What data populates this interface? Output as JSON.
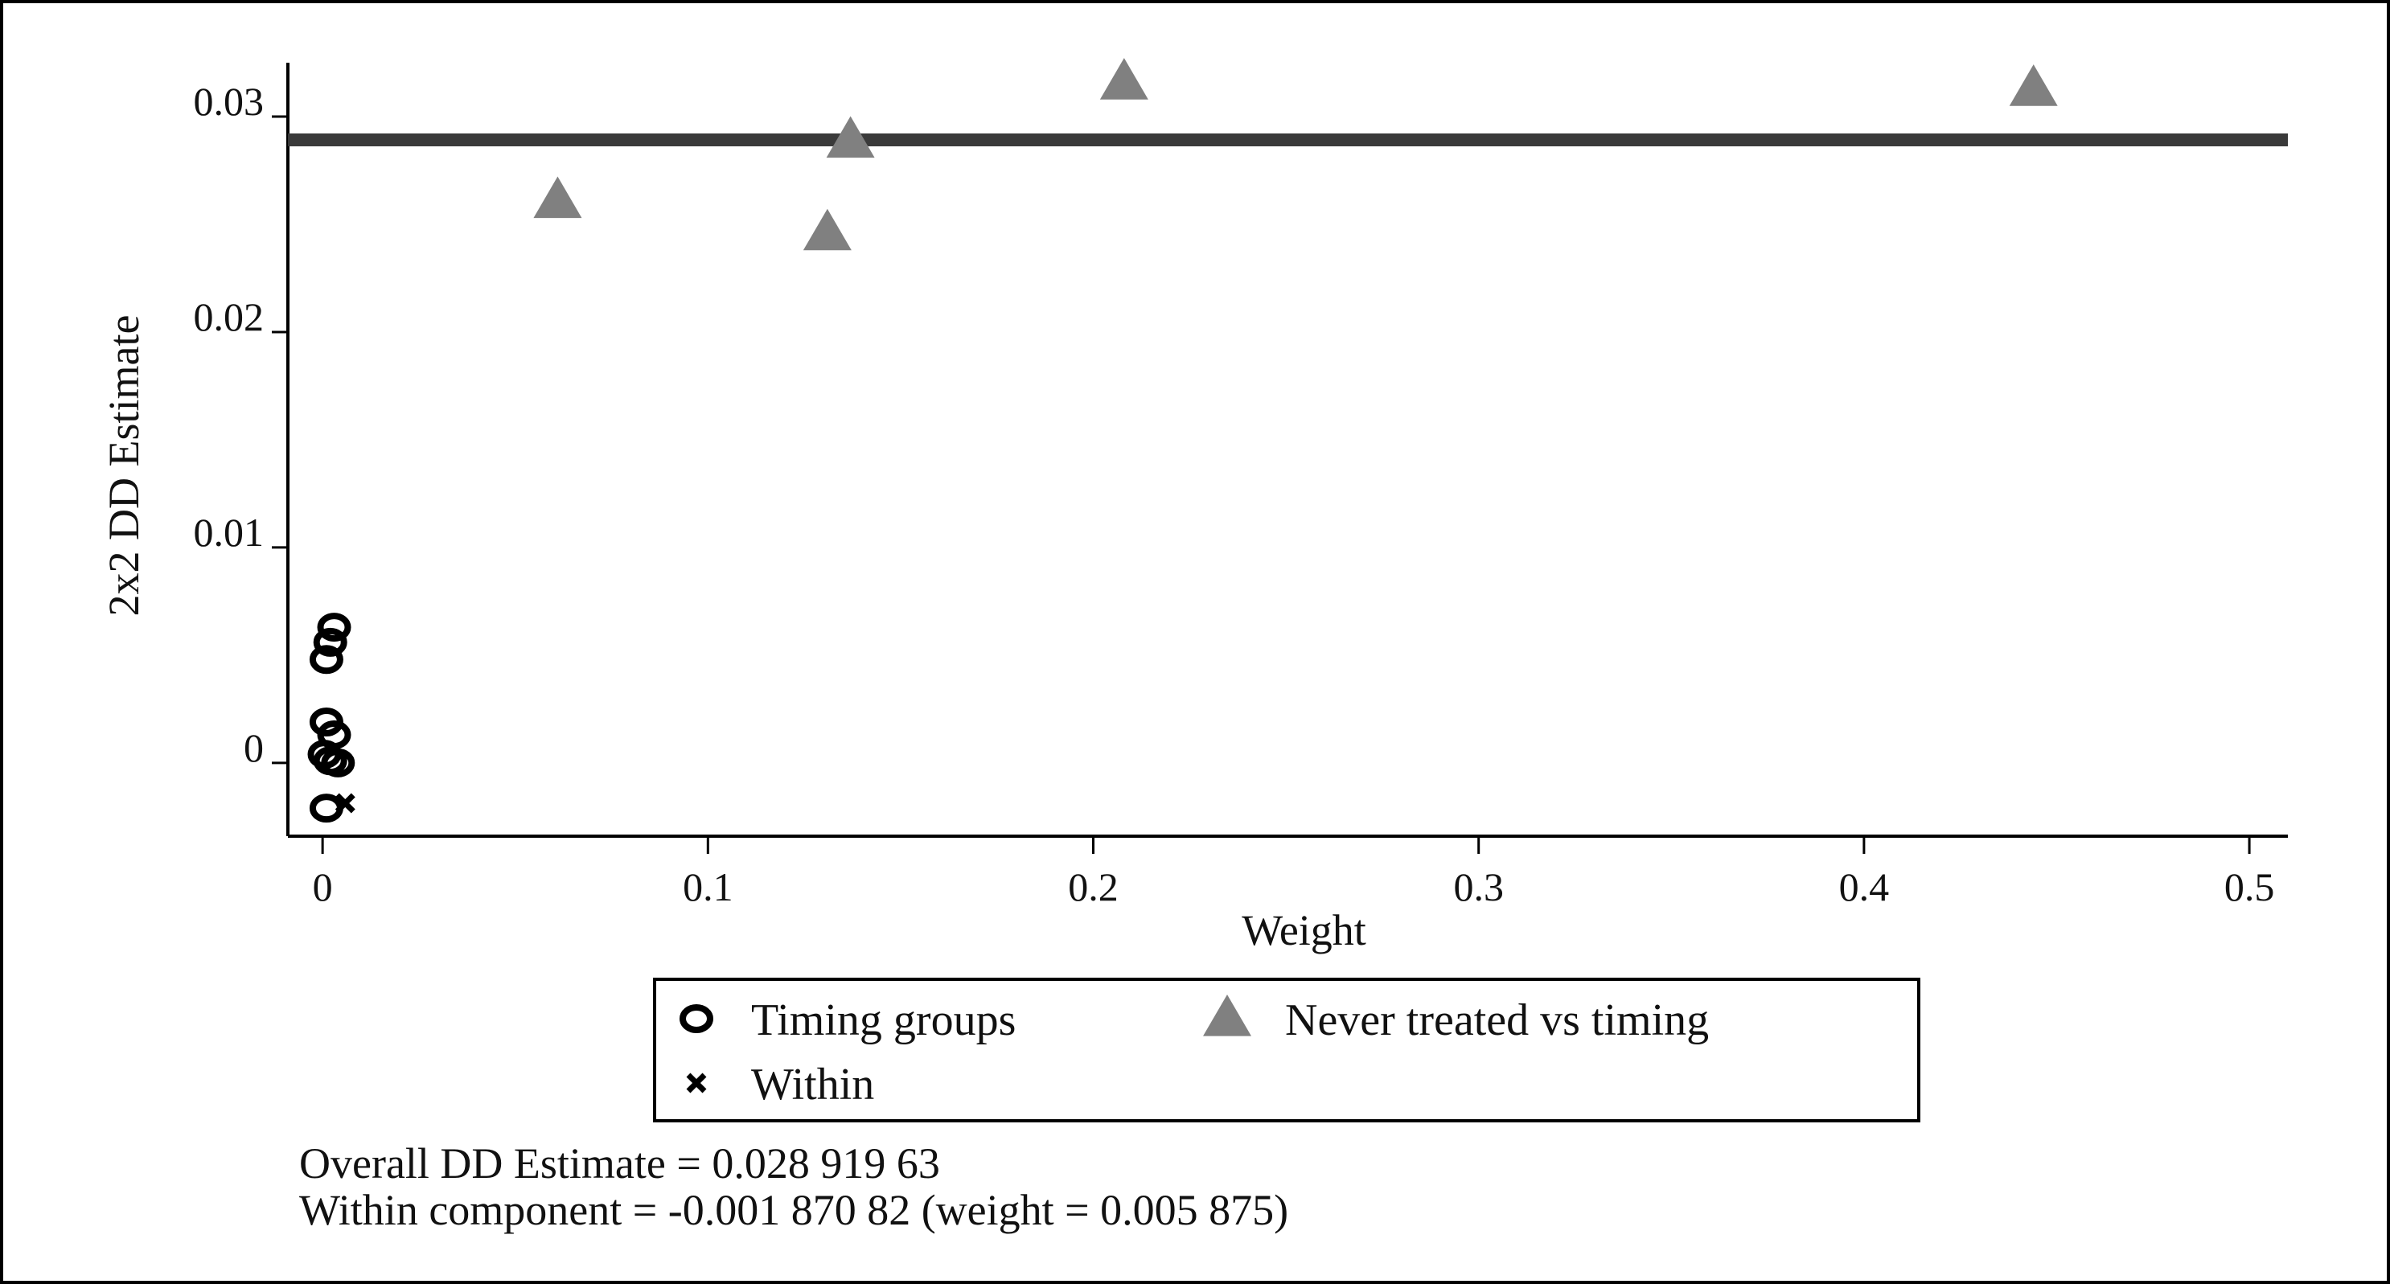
{
  "chart_data": {
    "type": "scatter",
    "title": "",
    "xlabel": "Weight",
    "ylabel": "2x2 DD Estimate",
    "xlim": [
      -0.009,
      0.51
    ],
    "ylim": [
      -0.0034,
      0.0325
    ],
    "x_ticks": [
      0,
      0.1,
      0.2,
      0.3,
      0.4,
      0.5
    ],
    "x_tick_labels": [
      "0",
      "0.1",
      "0.2",
      "0.3",
      "0.4",
      "0.5"
    ],
    "y_ticks": [
      0,
      0.01,
      0.02,
      0.03
    ],
    "y_tick_labels": [
      "0",
      "0.01",
      "0.02",
      "0.03"
    ],
    "grid": false,
    "legend_position": "bottom",
    "reference_line": {
      "type": "horizontal",
      "y": 0.02891963,
      "color": "#3a3a3a"
    },
    "series": [
      {
        "name": "Timing groups",
        "marker": "circle",
        "color": "#000000",
        "points": [
          {
            "x": 0.003,
            "y": 0.0063
          },
          {
            "x": 0.002,
            "y": 0.0056
          },
          {
            "x": 0.001,
            "y": 0.0048
          },
          {
            "x": 0.001,
            "y": 0.0019
          },
          {
            "x": 0.003,
            "y": 0.0013
          },
          {
            "x": 0.0005,
            "y": 0.0004
          },
          {
            "x": 0.002,
            "y": 0.0001
          },
          {
            "x": 0.004,
            "y": 0.0
          },
          {
            "x": 0.001,
            "y": -0.0021
          }
        ]
      },
      {
        "name": "Never treated vs timing",
        "marker": "triangle",
        "color": "#808080",
        "points": [
          {
            "x": 0.061,
            "y": 0.0261
          },
          {
            "x": 0.131,
            "y": 0.0246
          },
          {
            "x": 0.137,
            "y": 0.0289
          },
          {
            "x": 0.208,
            "y": 0.0316
          },
          {
            "x": 0.444,
            "y": 0.0313
          }
        ]
      },
      {
        "name": "Within",
        "marker": "x",
        "color": "#000000",
        "points": [
          {
            "x": 0.005875,
            "y": -0.00187082
          }
        ]
      }
    ],
    "annotations": [
      "Overall DD Estimate = 0.028 919 63",
      "Within component = -0.001 870 82 (weight = 0.005 875)"
    ]
  }
}
